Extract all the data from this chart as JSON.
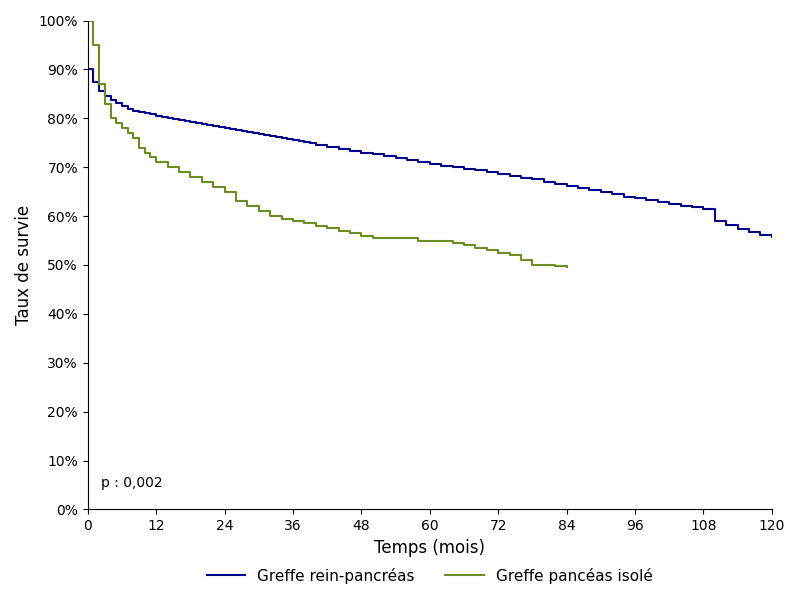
{
  "title": "",
  "xlabel": "Temps (mois)",
  "ylabel": "Taux de survie",
  "p_value_text": "p : 0,002",
  "xlim": [
    0,
    120
  ],
  "ylim": [
    0,
    1.0
  ],
  "xticks": [
    0,
    12,
    24,
    36,
    48,
    60,
    72,
    84,
    96,
    108,
    120
  ],
  "yticks": [
    0.0,
    0.1,
    0.2,
    0.3,
    0.4,
    0.5,
    0.6,
    0.7,
    0.8,
    0.9,
    1.0
  ],
  "ytick_labels": [
    "0%",
    "10%",
    "20%",
    "30%",
    "40%",
    "50%",
    "60%",
    "70%",
    "80%",
    "90%",
    "100%"
  ],
  "legend_labels": [
    "Greffe rein-pancréas",
    "Greffe pancéas isolé"
  ],
  "blue_color": "#00008B",
  "green_color": "#6B8E23",
  "line_width": 1.5,
  "blue_x": [
    0,
    1,
    2,
    3,
    4,
    5,
    6,
    7,
    8,
    9,
    10,
    11,
    12,
    13,
    14,
    15,
    16,
    17,
    18,
    19,
    20,
    21,
    22,
    23,
    24,
    25,
    26,
    27,
    28,
    29,
    30,
    31,
    32,
    33,
    34,
    35,
    36,
    37,
    38,
    39,
    40,
    42,
    44,
    46,
    48,
    50,
    52,
    54,
    56,
    58,
    60,
    62,
    64,
    66,
    68,
    70,
    72,
    74,
    76,
    78,
    80,
    82,
    84,
    86,
    88,
    90,
    92,
    94,
    96,
    98,
    100,
    102,
    104,
    106,
    108,
    110,
    112,
    114,
    116,
    118,
    120
  ],
  "blue_y": [
    0.9,
    0.875,
    0.855,
    0.845,
    0.838,
    0.832,
    0.825,
    0.82,
    0.815,
    0.812,
    0.81,
    0.808,
    0.805,
    0.802,
    0.8,
    0.798,
    0.796,
    0.794,
    0.792,
    0.79,
    0.788,
    0.786,
    0.784,
    0.782,
    0.78,
    0.778,
    0.776,
    0.774,
    0.772,
    0.77,
    0.768,
    0.766,
    0.764,
    0.762,
    0.76,
    0.758,
    0.756,
    0.754,
    0.752,
    0.75,
    0.746,
    0.742,
    0.738,
    0.734,
    0.73,
    0.726,
    0.722,
    0.718,
    0.714,
    0.71,
    0.706,
    0.703,
    0.7,
    0.697,
    0.694,
    0.69,
    0.686,
    0.682,
    0.678,
    0.675,
    0.67,
    0.666,
    0.662,
    0.658,
    0.654,
    0.65,
    0.645,
    0.64,
    0.636,
    0.632,
    0.628,
    0.624,
    0.621,
    0.618,
    0.615,
    0.59,
    0.582,
    0.574,
    0.568,
    0.562,
    0.558
  ],
  "green_x": [
    0,
    1,
    2,
    3,
    4,
    5,
    6,
    7,
    8,
    9,
    10,
    11,
    12,
    14,
    16,
    18,
    20,
    22,
    24,
    26,
    28,
    30,
    32,
    34,
    36,
    38,
    40,
    42,
    44,
    46,
    48,
    50,
    52,
    54,
    56,
    58,
    60,
    62,
    64,
    66,
    68,
    70,
    72,
    74,
    76,
    78,
    80,
    82,
    84
  ],
  "green_y": [
    1.0,
    0.95,
    0.87,
    0.83,
    0.8,
    0.79,
    0.78,
    0.77,
    0.76,
    0.74,
    0.73,
    0.72,
    0.71,
    0.7,
    0.69,
    0.68,
    0.67,
    0.66,
    0.65,
    0.63,
    0.62,
    0.61,
    0.6,
    0.595,
    0.59,
    0.585,
    0.58,
    0.575,
    0.57,
    0.565,
    0.56,
    0.555,
    0.555,
    0.555,
    0.555,
    0.55,
    0.55,
    0.55,
    0.545,
    0.54,
    0.535,
    0.53,
    0.525,
    0.52,
    0.51,
    0.5,
    0.499,
    0.498,
    0.495
  ]
}
